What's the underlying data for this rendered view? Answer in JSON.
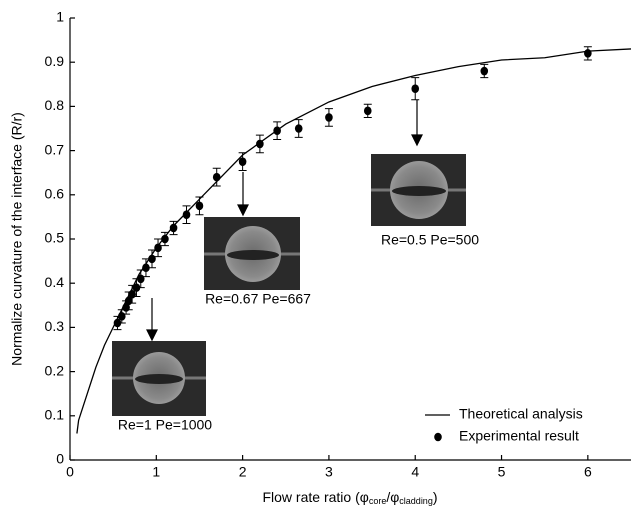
{
  "chart_data": {
    "type": "line",
    "xlabel_parts": [
      "Flow rate ratio  (",
      "φ",
      "core",
      "/",
      "φ",
      "cladding",
      ")"
    ],
    "ylabel": "Normalize curvature of the interface (R/r)",
    "xlim": [
      0,
      6.5
    ],
    "xticks": [
      0,
      1,
      2,
      3,
      4,
      5,
      6
    ],
    "ylim": [
      0,
      1
    ],
    "yticks": [
      0,
      0.1,
      0.2,
      0.3,
      0.4,
      0.5,
      0.6,
      0.7,
      0.8,
      0.9,
      1
    ],
    "legend": "lower right",
    "annotations": [
      "Re=1 Pe=1000",
      "Re=0.67 Pe=667",
      "Re=0.5 Pe=500"
    ],
    "series": [
      {
        "name": "Theoretical analysis",
        "color": "#000000",
        "style": "line",
        "x": [
          0.08,
          0.1,
          0.15,
          0.2,
          0.3,
          0.4,
          0.5,
          0.6,
          0.7,
          0.8,
          1,
          1.2,
          1.5,
          2,
          2.5,
          3,
          3.5,
          4,
          4.5,
          5,
          5.5,
          6,
          6.5
        ],
        "values": [
          0.06,
          0.09,
          0.12,
          0.15,
          0.21,
          0.26,
          0.3,
          0.34,
          0.38,
          0.42,
          0.48,
          0.53,
          0.59,
          0.69,
          0.76,
          0.81,
          0.845,
          0.87,
          0.89,
          0.905,
          0.91,
          0.925,
          0.93
        ]
      },
      {
        "name": "Experimental result",
        "color": "#000000",
        "style": "marker",
        "x": [
          0.55,
          0.6,
          0.65,
          0.68,
          0.72,
          0.77,
          0.82,
          0.88,
          0.95,
          1.02,
          1.1,
          1.2,
          1.35,
          1.5,
          1.7,
          2.0,
          2.2,
          2.4,
          2.65,
          3.0,
          3.45,
          4.0,
          4.8,
          6.0
        ],
        "values": [
          0.31,
          0.325,
          0.345,
          0.36,
          0.375,
          0.39,
          0.41,
          0.435,
          0.455,
          0.48,
          0.5,
          0.525,
          0.555,
          0.575,
          0.64,
          0.675,
          0.715,
          0.745,
          0.75,
          0.775,
          0.79,
          0.84,
          0.88,
          0.92
        ],
        "errors": [
          0.015,
          0.015,
          0.015,
          0.02,
          0.02,
          0.02,
          0.02,
          0.02,
          0.02,
          0.02,
          0.015,
          0.015,
          0.02,
          0.02,
          0.02,
          0.02,
          0.02,
          0.02,
          0.02,
          0.02,
          0.015,
          0.025,
          0.015,
          0.015
        ]
      }
    ]
  }
}
